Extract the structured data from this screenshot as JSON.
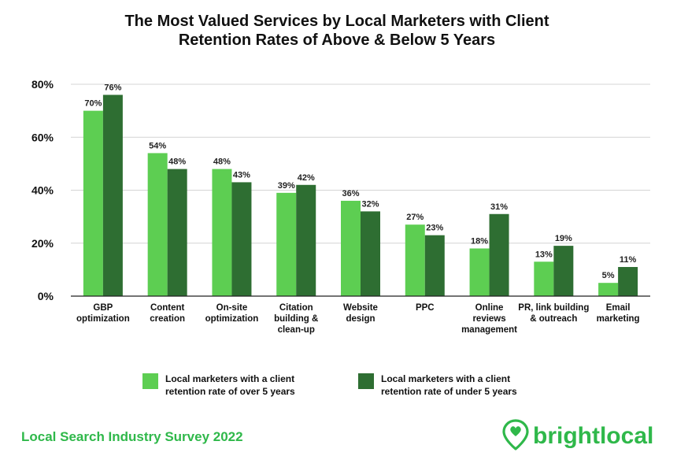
{
  "chart_data": {
    "type": "bar",
    "title_lines": [
      "The Most Valued Services by Local Marketers with Client",
      "Retention Rates of Above & Below 5 Years"
    ],
    "categories": [
      [
        "GBP",
        "optimization"
      ],
      [
        "Content",
        "creation"
      ],
      [
        "On-site",
        "optimization"
      ],
      [
        "Citation",
        "building &",
        "clean-up"
      ],
      [
        "Website",
        "design"
      ],
      [
        "PPC"
      ],
      [
        "Online",
        "reviews",
        "management"
      ],
      [
        "PR, link building",
        "& outreach"
      ],
      [
        "Email",
        "marketing"
      ]
    ],
    "series": [
      {
        "name_lines": [
          "Local marketers with a client",
          "retention rate of over 5 years"
        ],
        "color": "#5dce52",
        "values": [
          70,
          54,
          48,
          39,
          36,
          27,
          18,
          13,
          5
        ]
      },
      {
        "name_lines": [
          "Local marketers with a client",
          "retention rate of under 5 years"
        ],
        "color": "#2e6e32",
        "values": [
          76,
          48,
          43,
          42,
          32,
          23,
          31,
          19,
          11
        ]
      }
    ],
    "ylim": [
      0,
      80
    ],
    "yticks": [
      0,
      20,
      40,
      60,
      80
    ],
    "value_suffix": "%",
    "grid": true,
    "legend_position": "bottom"
  },
  "footer": {
    "survey_label": "Local Search Industry Survey 2022",
    "brand_name": "brightlocal",
    "brand_color": "#2fb84a"
  },
  "icons": {
    "brand_logo": "location-pin-heart-icon"
  }
}
